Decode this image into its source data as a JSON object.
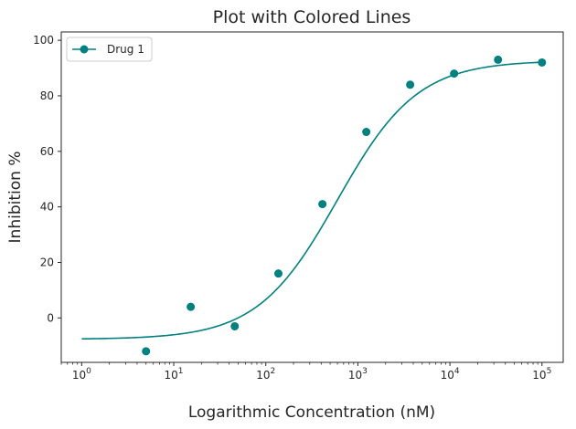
{
  "chart_data": {
    "type": "line",
    "title": "Plot with Colored Lines",
    "xlabel": "Logarithmic Concentration (nM)",
    "ylabel": "Inhibition %",
    "x_scale": "log",
    "xlim": [
      0.6,
      170000
    ],
    "ylim": [
      -16,
      103
    ],
    "grid": false,
    "legend_position": "top-left",
    "y_ticks": [
      0,
      20,
      40,
      60,
      80,
      100
    ],
    "x_ticks": [
      {
        "value": 1,
        "base": "10",
        "exp": "0"
      },
      {
        "value": 10,
        "base": "10",
        "exp": "1"
      },
      {
        "value": 100,
        "base": "10",
        "exp": "2"
      },
      {
        "value": 1000,
        "base": "10",
        "exp": "3"
      },
      {
        "value": 10000,
        "base": "10",
        "exp": "4"
      },
      {
        "value": 100000,
        "base": "10",
        "exp": "5"
      }
    ],
    "series": [
      {
        "name": "Drug 1",
        "color": "#008080",
        "points": [
          {
            "x": 5,
            "y": -12
          },
          {
            "x": 15.3,
            "y": 4
          },
          {
            "x": 46,
            "y": -3
          },
          {
            "x": 137,
            "y": 16
          },
          {
            "x": 412,
            "y": 41
          },
          {
            "x": 1235,
            "y": 67
          },
          {
            "x": 3700,
            "y": 84
          },
          {
            "x": 11100,
            "y": 88
          },
          {
            "x": 33300,
            "y": 93
          },
          {
            "x": 100000,
            "y": 92
          }
        ],
        "fit": {
          "bottom": -7.7,
          "top": 92.7,
          "ec50": 600,
          "hill": 1.0,
          "x_from": 1,
          "x_to": 100000
        }
      }
    ]
  }
}
